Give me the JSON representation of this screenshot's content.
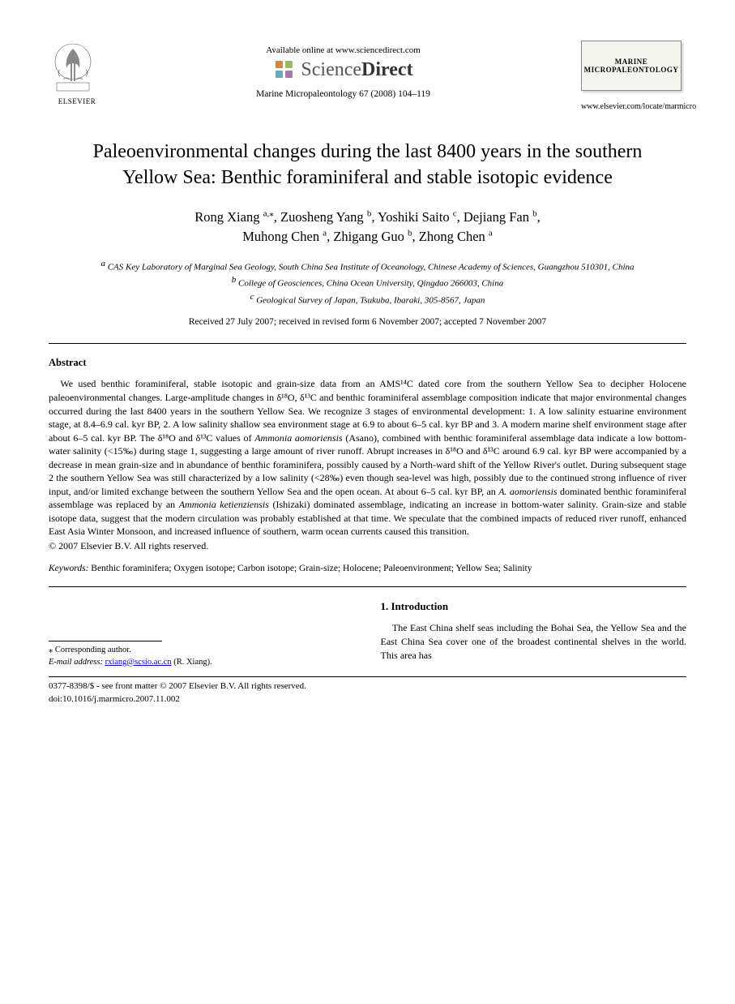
{
  "header": {
    "publisher_name": "ELSEVIER",
    "available_text": "Available online at www.sciencedirect.com",
    "sd_plain": "Science",
    "sd_bold": "Direct",
    "journal_ref": "Marine Micropaleontology 67 (2008) 104–119",
    "journal_cover_line1": "MARINE",
    "journal_cover_line2": "MICROPALEONTOLOGY",
    "journal_url": "www.elsevier.com/locate/marmicro"
  },
  "title": "Paleoenvironmental changes during the last 8400 years in the southern Yellow Sea: Benthic foraminiferal and stable isotopic evidence",
  "authors_html": "Rong Xiang <span class='sup'>a,⁎</span>, Zuosheng Yang <span class='sup'>b</span>, Yoshiki Saito <span class='sup'>c</span>, Dejiang Fan <span class='sup'>b</span>,<br>Muhong Chen <span class='sup'>a</span>, Zhigang Guo <span class='sup'>b</span>, Zhong Chen <span class='sup'>a</span>",
  "affiliations": {
    "a": "CAS Key Laboratory of Marginal Sea Geology, South China Sea Institute of Oceanology, Chinese Academy of Sciences, Guangzhou 510301, China",
    "b": "College of Geosciences, China Ocean University, Qingdao 266003, China",
    "c": "Geological Survey of Japan, Tsukuba, Ibaraki, 305-8567, Japan"
  },
  "dates": "Received 27 July 2007; received in revised form 6 November 2007; accepted 7 November 2007",
  "abstract_heading": "Abstract",
  "abstract": "We used benthic foraminiferal, stable isotopic and grain-size data from an AMS¹⁴C dated core from the southern Yellow Sea to decipher Holocene paleoenvironmental changes. Large-amplitude changes in δ¹⁸O, δ¹³C and benthic foraminiferal assemblage composition indicate that major environmental changes occurred during the last 8400 years in the southern Yellow Sea. We recognize 3 stages of environmental development: 1. A low salinity estuarine environment stage, at 8.4–6.9 cal. kyr BP, 2. A low salinity shallow sea environment stage at 6.9 to about 6–5 cal. kyr BP and 3. A modern marine shelf environment stage after about 6–5 cal. kyr BP. The δ¹⁸O and δ¹³C values of Ammonia aomoriensis (Asano), combined with benthic foraminiferal assemblage data indicate a low bottom-water salinity (<15‰) during stage 1, suggesting a large amount of river runoff. Abrupt increases in δ¹⁸O and δ¹³C around 6.9 cal. kyr BP were accompanied by a decrease in mean grain-size and in abundance of benthic foraminifera, possibly caused by a North-ward shift of the Yellow River's outlet. During subsequent stage 2 the southern Yellow Sea was still characterized by a low salinity (<28‰) even though sea-level was high, possibly due to the continued strong influence of river input, and/or limited exchange between the southern Yellow Sea and the open ocean. At about 6–5 cal. kyr BP, an A. aomoriensis dominated benthic foraminiferal assemblage was replaced by an Ammonia ketienziensis (Ishizaki) dominated assemblage, indicating an increase in bottom-water salinity. Grain-size and stable isotope data, suggest that the modern circulation was probably established at that time. We speculate that the combined impacts of reduced river runoff, enhanced East Asia Winter Monsoon, and increased influence of southern, warm ocean currents caused this transition.",
  "copyright": "© 2007 Elsevier B.V. All rights reserved.",
  "keywords_label": "Keywords:",
  "keywords": "Benthic foraminifera; Oxygen isotope; Carbon isotope; Grain-size; Holocene; Paleoenvironment; Yellow Sea; Salinity",
  "intro_heading": "1. Introduction",
  "intro_text": "The East China shelf seas including the Bohai Sea, the Yellow Sea and the East China Sea cover one of the broadest continental shelves in the world. This area has",
  "footnote": {
    "corr": "⁎ Corresponding author.",
    "email_label": "E-mail address:",
    "email": "rxiang@scsio.ac.cn",
    "email_author": "(R. Xiang)."
  },
  "footer": {
    "line1": "0377-8398/$ - see front matter © 2007 Elsevier B.V. All rights reserved.",
    "line2": "doi:10.1016/j.marmicro.2007.11.002"
  },
  "colors": {
    "text": "#000000",
    "link": "#0000cc",
    "sd_gray": "#555555",
    "sd_dark": "#333333"
  }
}
